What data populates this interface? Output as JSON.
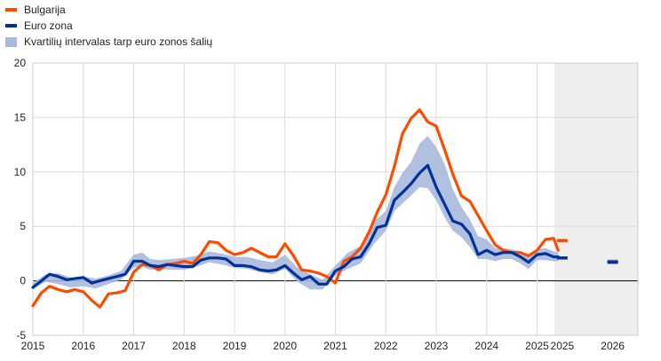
{
  "chart_data": {
    "type": "line",
    "title": "",
    "xlabel": "",
    "ylabel": "",
    "ylim": [
      -5,
      20
    ],
    "y_ticks": [
      -5,
      0,
      5,
      10,
      15,
      20
    ],
    "x_ticks": [
      "2015",
      "2016",
      "2017",
      "2018",
      "2019",
      "2020",
      "2021",
      "2022",
      "2023",
      "2024",
      "2025",
      "2025",
      "2026"
    ],
    "grid": true,
    "legend_position": "top-left",
    "projection_shaded_from": "2025-05",
    "colors": {
      "bulgaria": "#ff4b00",
      "euro": "#003299",
      "band": "#a9b9dc",
      "projection_bg": "#eeeeee"
    },
    "legend": [
      {
        "key": "bulgaria",
        "label": "Bulgarija"
      },
      {
        "key": "euro",
        "label": "Euro zona"
      },
      {
        "key": "band",
        "label": "Kvartilių intervalas tarp euro zonos šalių"
      }
    ],
    "series": [
      {
        "name": "Bulgarija",
        "points": [
          [
            2015.0,
            -2.3
          ],
          [
            2015.17,
            -1.1
          ],
          [
            2015.33,
            -0.5
          ],
          [
            2015.5,
            -0.8
          ],
          [
            2015.67,
            -1.0
          ],
          [
            2015.83,
            -0.8
          ],
          [
            2016.0,
            -1.0
          ],
          [
            2016.17,
            -1.8
          ],
          [
            2016.33,
            -2.4
          ],
          [
            2016.5,
            -1.2
          ],
          [
            2016.67,
            -1.1
          ],
          [
            2016.83,
            -0.9
          ],
          [
            2017.0,
            0.8
          ],
          [
            2017.17,
            1.5
          ],
          [
            2017.33,
            1.4
          ],
          [
            2017.5,
            1.0
          ],
          [
            2017.67,
            1.5
          ],
          [
            2017.83,
            1.6
          ],
          [
            2018.0,
            1.8
          ],
          [
            2018.17,
            1.6
          ],
          [
            2018.33,
            2.4
          ],
          [
            2018.5,
            3.6
          ],
          [
            2018.67,
            3.5
          ],
          [
            2018.83,
            2.8
          ],
          [
            2019.0,
            2.4
          ],
          [
            2019.17,
            2.6
          ],
          [
            2019.33,
            3.0
          ],
          [
            2019.5,
            2.6
          ],
          [
            2019.67,
            2.2
          ],
          [
            2019.83,
            2.2
          ],
          [
            2020.0,
            3.4
          ],
          [
            2020.17,
            2.3
          ],
          [
            2020.33,
            1.0
          ],
          [
            2020.5,
            0.9
          ],
          [
            2020.67,
            0.7
          ],
          [
            2020.83,
            0.4
          ],
          [
            2021.0,
            -0.2
          ],
          [
            2021.17,
            1.8
          ],
          [
            2021.33,
            2.2
          ],
          [
            2021.5,
            3.0
          ],
          [
            2021.67,
            4.5
          ],
          [
            2021.83,
            6.3
          ],
          [
            2022.0,
            7.9
          ],
          [
            2022.17,
            10.5
          ],
          [
            2022.33,
            13.5
          ],
          [
            2022.5,
            14.9
          ],
          [
            2022.67,
            15.7
          ],
          [
            2022.83,
            14.6
          ],
          [
            2023.0,
            14.2
          ],
          [
            2023.17,
            12.0
          ],
          [
            2023.33,
            9.8
          ],
          [
            2023.5,
            7.8
          ],
          [
            2023.67,
            7.3
          ],
          [
            2023.83,
            6.0
          ],
          [
            2024.0,
            4.6
          ],
          [
            2024.17,
            3.3
          ],
          [
            2024.33,
            2.8
          ],
          [
            2024.5,
            2.6
          ],
          [
            2024.67,
            2.6
          ],
          [
            2024.83,
            2.3
          ],
          [
            2025.0,
            2.8
          ],
          [
            2025.17,
            3.8
          ],
          [
            2025.33,
            3.9
          ],
          [
            2025.42,
            2.8
          ]
        ]
      },
      {
        "name": "Euro zona",
        "points": [
          [
            2015.0,
            -0.6
          ],
          [
            2015.17,
            0.0
          ],
          [
            2015.33,
            0.6
          ],
          [
            2015.5,
            0.4
          ],
          [
            2015.67,
            0.1
          ],
          [
            2015.83,
            0.2
          ],
          [
            2016.0,
            0.3
          ],
          [
            2016.17,
            -0.2
          ],
          [
            2016.33,
            0.0
          ],
          [
            2016.5,
            0.2
          ],
          [
            2016.67,
            0.4
          ],
          [
            2016.83,
            0.6
          ],
          [
            2017.0,
            1.8
          ],
          [
            2017.17,
            1.8
          ],
          [
            2017.33,
            1.4
          ],
          [
            2017.5,
            1.3
          ],
          [
            2017.67,
            1.5
          ],
          [
            2017.83,
            1.4
          ],
          [
            2018.0,
            1.3
          ],
          [
            2018.17,
            1.3
          ],
          [
            2018.33,
            1.9
          ],
          [
            2018.5,
            2.1
          ],
          [
            2018.67,
            2.1
          ],
          [
            2018.83,
            2.0
          ],
          [
            2019.0,
            1.4
          ],
          [
            2019.17,
            1.4
          ],
          [
            2019.33,
            1.3
          ],
          [
            2019.5,
            1.0
          ],
          [
            2019.67,
            0.9
          ],
          [
            2019.83,
            1.0
          ],
          [
            2020.0,
            1.4
          ],
          [
            2020.17,
            0.7
          ],
          [
            2020.33,
            0.1
          ],
          [
            2020.5,
            0.4
          ],
          [
            2020.67,
            -0.3
          ],
          [
            2020.83,
            -0.3
          ],
          [
            2021.0,
            0.9
          ],
          [
            2021.17,
            1.3
          ],
          [
            2021.33,
            2.0
          ],
          [
            2021.5,
            2.2
          ],
          [
            2021.67,
            3.4
          ],
          [
            2021.83,
            4.9
          ],
          [
            2022.0,
            5.1
          ],
          [
            2022.17,
            7.4
          ],
          [
            2022.33,
            8.1
          ],
          [
            2022.5,
            8.9
          ],
          [
            2022.67,
            9.9
          ],
          [
            2022.83,
            10.6
          ],
          [
            2023.0,
            8.6
          ],
          [
            2023.17,
            7.0
          ],
          [
            2023.33,
            5.5
          ],
          [
            2023.5,
            5.2
          ],
          [
            2023.67,
            4.3
          ],
          [
            2023.83,
            2.4
          ],
          [
            2024.0,
            2.8
          ],
          [
            2024.17,
            2.4
          ],
          [
            2024.33,
            2.6
          ],
          [
            2024.5,
            2.6
          ],
          [
            2024.67,
            2.2
          ],
          [
            2024.83,
            1.7
          ],
          [
            2025.0,
            2.4
          ],
          [
            2025.17,
            2.5
          ],
          [
            2025.33,
            2.2
          ],
          [
            2025.42,
            2.2
          ]
        ]
      }
    ],
    "band": {
      "name": "Kvartilių intervalas tarp euro zonos šalių",
      "points": [
        [
          2015.0,
          -0.8,
          -0.2
        ],
        [
          2015.25,
          -0.1,
          0.6
        ],
        [
          2015.5,
          -0.3,
          0.7
        ],
        [
          2015.75,
          -0.6,
          0.3
        ],
        [
          2016.0,
          -0.5,
          0.4
        ],
        [
          2016.25,
          -0.7,
          0.2
        ],
        [
          2016.5,
          -0.3,
          0.5
        ],
        [
          2016.75,
          0.1,
          0.9
        ],
        [
          2017.0,
          1.2,
          2.4
        ],
        [
          2017.17,
          1.3,
          2.6
        ],
        [
          2017.33,
          1.0,
          2.0
        ],
        [
          2017.5,
          1.1,
          1.9
        ],
        [
          2017.75,
          1.0,
          2.0
        ],
        [
          2018.0,
          1.0,
          2.1
        ],
        [
          2018.25,
          1.3,
          2.3
        ],
        [
          2018.5,
          1.7,
          2.7
        ],
        [
          2018.75,
          1.5,
          2.5
        ],
        [
          2019.0,
          1.2,
          2.2
        ],
        [
          2019.25,
          1.1,
          2.2
        ],
        [
          2019.5,
          0.8,
          1.9
        ],
        [
          2019.75,
          0.6,
          1.7
        ],
        [
          2020.0,
          1.1,
          2.4
        ],
        [
          2020.25,
          -0.1,
          1.2
        ],
        [
          2020.5,
          -0.8,
          0.6
        ],
        [
          2020.75,
          -0.8,
          0.1
        ],
        [
          2021.0,
          0.5,
          1.4
        ],
        [
          2021.25,
          1.1,
          2.6
        ],
        [
          2021.5,
          1.6,
          3.2
        ],
        [
          2021.75,
          3.3,
          5.4
        ],
        [
          2022.0,
          4.6,
          6.4
        ],
        [
          2022.17,
          6.4,
          8.6
        ],
        [
          2022.33,
          7.1,
          9.9
        ],
        [
          2022.5,
          7.8,
          10.9
        ],
        [
          2022.67,
          8.6,
          12.6
        ],
        [
          2022.83,
          8.5,
          13.3
        ],
        [
          2023.0,
          7.4,
          12.3
        ],
        [
          2023.17,
          5.8,
          10.7
        ],
        [
          2023.33,
          4.6,
          8.4
        ],
        [
          2023.5,
          4.0,
          6.8
        ],
        [
          2023.67,
          3.1,
          5.6
        ],
        [
          2023.83,
          2.0,
          4.1
        ],
        [
          2024.0,
          2.0,
          3.8
        ],
        [
          2024.17,
          1.8,
          3.0
        ],
        [
          2024.33,
          2.0,
          3.0
        ],
        [
          2024.5,
          2.0,
          2.9
        ],
        [
          2024.67,
          1.6,
          2.7
        ],
        [
          2024.83,
          1.1,
          2.4
        ],
        [
          2025.0,
          1.9,
          2.9
        ],
        [
          2025.17,
          1.9,
          3.0
        ],
        [
          2025.33,
          1.8,
          2.7
        ],
        [
          2025.42,
          1.8,
          2.6
        ]
      ]
    },
    "projections": [
      {
        "series": "Bulgarija",
        "x": 2025.5,
        "value": 3.7
      },
      {
        "series": "Euro zona",
        "x": 2025.5,
        "value": 2.1
      },
      {
        "series": "Bulgarija",
        "x": 2026.5,
        "value": 1.8
      },
      {
        "series": "Euro zona",
        "x": 2026.5,
        "value": 1.7
      }
    ]
  }
}
